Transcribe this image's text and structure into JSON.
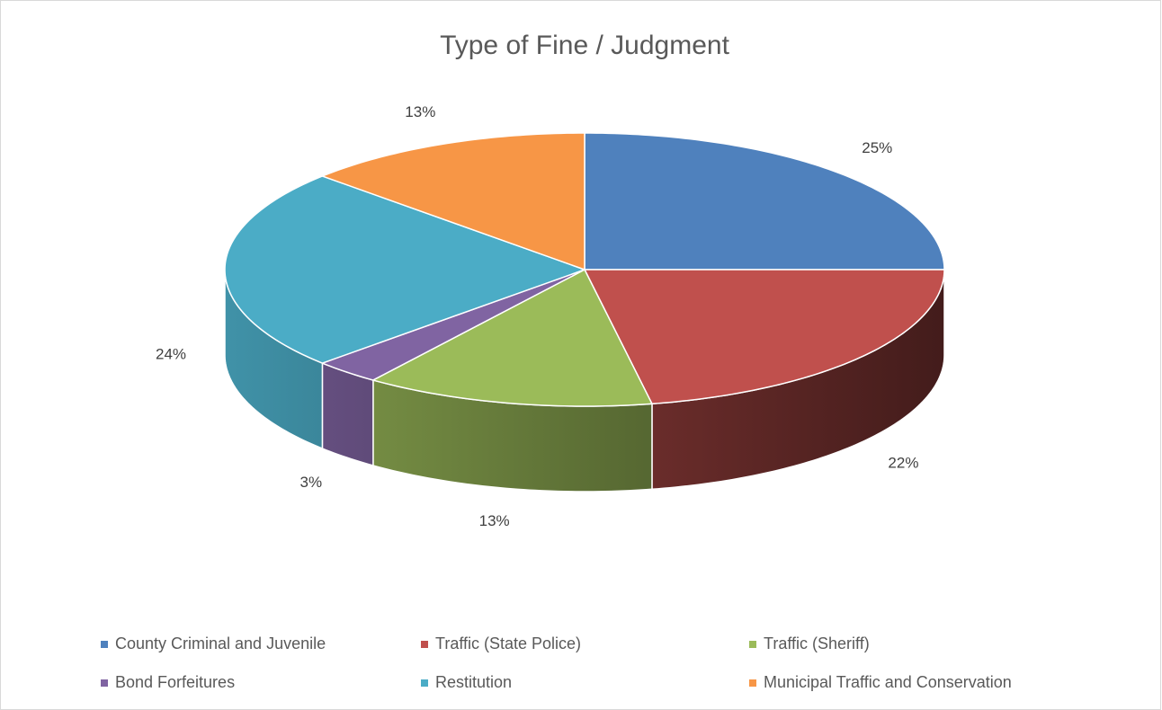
{
  "chart_data": {
    "type": "pie3d",
    "title": "Type of Fine / Judgment",
    "categories": [
      "County Criminal and Juvenile",
      "Traffic (State Police)",
      "Traffic (Sheriff)",
      "Bond Forfeitures",
      "Restitution",
      "Municipal Traffic and Conservation"
    ],
    "values": [
      25,
      22,
      13,
      3,
      24,
      13
    ],
    "value_labels": [
      "25%",
      "22%",
      "13%",
      "3%",
      "24%",
      "13%"
    ],
    "colors": [
      "#4f81bd",
      "#c0504d",
      "#9bbb59",
      "#8064a2",
      "#4bacc6",
      "#f79646"
    ],
    "legend": "bottom"
  }
}
